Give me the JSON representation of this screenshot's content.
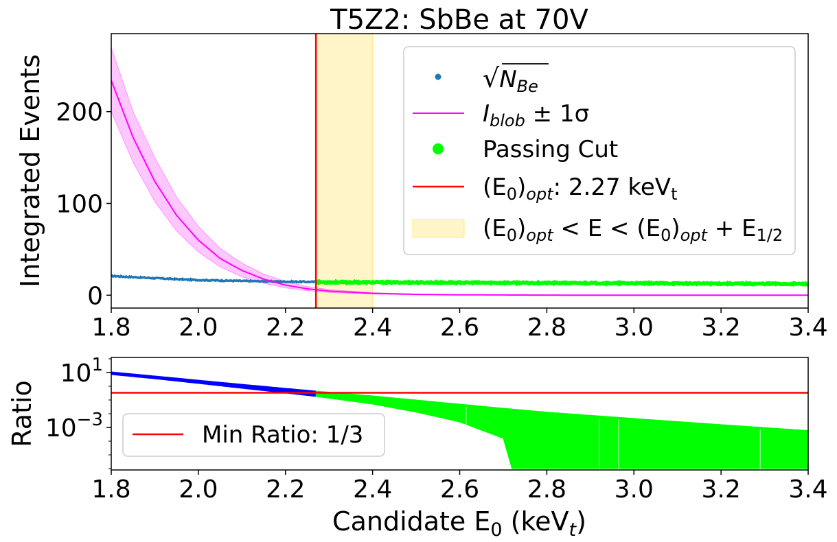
{
  "chart_data": [
    {
      "type": "line",
      "title": "T5Z2: SbBe at 70V",
      "xlabel": "",
      "ylabel": "Integrated Events",
      "xlim": [
        1.8,
        3.4
      ],
      "ylim": [
        -14,
        285
      ],
      "xticks": [
        "1.8",
        "2.0",
        "2.2",
        "2.4",
        "2.6",
        "2.8",
        "3.0",
        "3.2",
        "3.4"
      ],
      "yticks": [
        {
          "value": 0,
          "label": "0"
        },
        {
          "value": 100,
          "label": "100"
        },
        {
          "value": 200,
          "label": "200"
        }
      ],
      "grid": false,
      "legend_position": "upper-right",
      "legend": {
        "sqrt_n": "√",
        "sqrt_n_base": "N",
        "sqrt_n_sub": "Be",
        "iblob_base": "I",
        "iblob_sub": "blob",
        "iblob_suffix": " ± 1σ",
        "passing": "Passing Cut",
        "e0_prefix": "(E",
        "e0_sub0": "0",
        "e0_mid": ")",
        "e0_sub_opt": "opt",
        "e0_value": ": 2.27 keV",
        "e0_unit_sub": "t",
        "band_p1": "(E",
        "band_s1": "0",
        "band_p2": ")",
        "band_s2": "opt",
        "band_p3": " < E < (E",
        "band_s3": "0",
        "band_p4": ")",
        "band_s4": "opt",
        "band_p5": " + E",
        "band_s5": "1/2"
      },
      "series": [
        {
          "name": "sqrt(N_Be)",
          "color": "#1f77b4",
          "x": [
            1.8,
            1.9,
            2.0,
            2.1,
            2.2,
            2.27
          ],
          "y": [
            21,
            18.5,
            16.5,
            15.5,
            14.8,
            14.5
          ]
        },
        {
          "name": "I_blob",
          "color": "#ff00ff",
          "x": [
            1.8,
            1.85,
            1.9,
            1.95,
            2.0,
            2.05,
            2.1,
            2.15,
            2.2,
            2.25,
            2.3,
            2.4,
            2.5,
            2.6,
            2.8,
            3.0,
            3.2,
            3.4
          ],
          "y": [
            234,
            172,
            124,
            87,
            60,
            40,
            27,
            17.5,
            11,
            7,
            4.5,
            2,
            0.9,
            0.4,
            0.1,
            0.03,
            0.01,
            0.005
          ],
          "band_upper": [
            270,
            200,
            150,
            107,
            75,
            51,
            35,
            23,
            15,
            9.5,
            6,
            2.8,
            1.2,
            0.5,
            0.15,
            0.04,
            0.01,
            0.005
          ],
          "band_lower": [
            200,
            145,
            102,
            70,
            47,
            31,
            20,
            13,
            8,
            5,
            3,
            1.3,
            0.6,
            0.3,
            0.07,
            0.02,
            0.01,
            0.005
          ]
        },
        {
          "name": "Passing Cut",
          "color": "#00ff00",
          "x": [
            2.27,
            2.4,
            2.6,
            2.8,
            3.0,
            3.2,
            3.4
          ],
          "y": [
            14.2,
            14.0,
            13.7,
            13.3,
            13.0,
            12.6,
            12.3
          ]
        }
      ],
      "vline": {
        "x": 2.27,
        "color": "#ff0000"
      },
      "band": {
        "x0": 2.27,
        "x1": 2.4,
        "color": "#fff5c8"
      }
    },
    {
      "type": "area",
      "title": "",
      "xlabel_base": "Candidate E",
      "xlabel_sub": "0",
      "xlabel_mid": " (keV",
      "xlabel_sub2": "t",
      "xlabel_end": ")",
      "ylabel": "Ratio",
      "xlim": [
        1.8,
        3.4
      ],
      "ylim_log10": [
        -6.1,
        2.1
      ],
      "yscale": "log",
      "xticks": [
        "1.8",
        "2.0",
        "2.2",
        "2.4",
        "2.6",
        "2.8",
        "3.0",
        "3.2",
        "3.4"
      ],
      "yticks": [
        {
          "exp": 1,
          "base": "10",
          "sup": "1"
        },
        {
          "exp": -3,
          "base": "10",
          "sup": "−3"
        }
      ],
      "grid": false,
      "legend_position": "lower-left",
      "legend_label": "Min Ratio: 1/3",
      "hline": {
        "value": 0.3333,
        "color": "#ff0000"
      },
      "series": [
        {
          "name": "failing",
          "color": "#0000ff",
          "x": [
            1.8,
            1.9,
            2.0,
            2.1,
            2.2,
            2.27
          ],
          "upper": [
            11.2,
            5.6,
            2.8,
            1.4,
            0.71,
            0.45
          ],
          "lower": [
            7.1,
            3.5,
            1.6,
            0.71,
            0.32,
            0.18
          ]
        },
        {
          "name": "passing",
          "color": "#00ff00",
          "x": [
            2.27,
            2.4,
            2.5,
            2.6,
            2.7,
            2.72,
            2.8,
            3.0,
            3.2,
            3.4
          ],
          "upper": [
            0.45,
            0.2,
            0.1,
            0.05,
            0.025,
            0.022,
            0.013,
            0.0045,
            0.0016,
            0.0006
          ],
          "lower": [
            0.18,
            0.05,
            0.013,
            0.0025,
            0.00016,
            1e-06,
            1e-06,
            1e-06,
            1e-06,
            1e-06
          ],
          "gaps_x": [
            2.615,
            2.92,
            2.965,
            3.29
          ]
        }
      ]
    }
  ]
}
